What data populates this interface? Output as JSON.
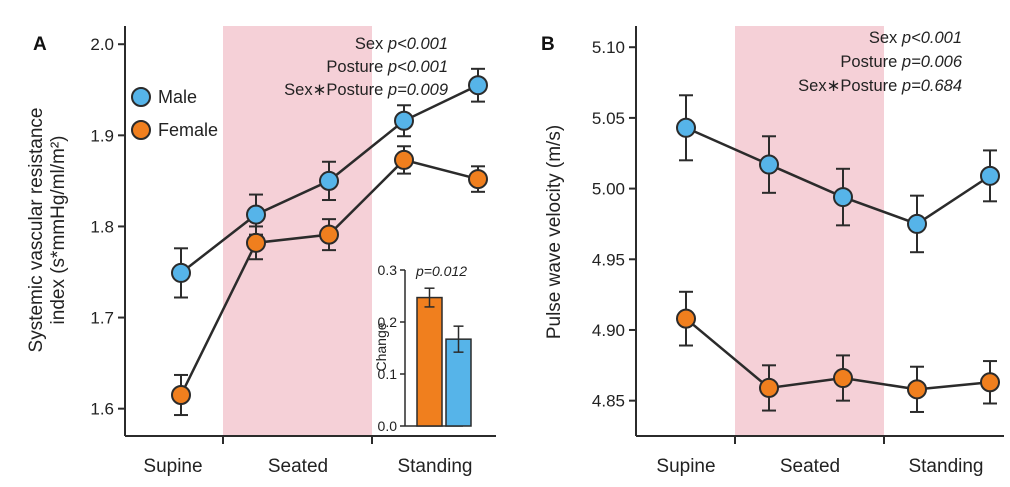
{
  "colors": {
    "male": "#56b4e9",
    "female": "#f07f1e",
    "shade": "#f5d0d7",
    "line": "#2b2b2b"
  },
  "legend": {
    "male": "Male",
    "female": "Female"
  },
  "chart_data": [
    {
      "panel_letter": "A",
      "type": "line",
      "ylabel_line1": "Systemic vascular resistance",
      "ylabel_line2": "index (s*mmHg/ml/m²)",
      "categories": [
        "Supine",
        "Seated",
        "Standing"
      ],
      "ylim": [
        1.57,
        2.02
      ],
      "yticks": [
        1.6,
        1.7,
        1.8,
        1.9,
        2.0
      ],
      "ytick_labels": [
        "1.6",
        "1.7",
        "1.8",
        "1.9",
        "2.0"
      ],
      "shaded_region": "Seated",
      "stats": [
        {
          "label": "Sex",
          "p": "p<0.001"
        },
        {
          "label": "Posture",
          "p": "p<0.001"
        },
        {
          "label": "Sex∗Posture",
          "p": "p=0.009"
        }
      ],
      "series": [
        {
          "name": "Male",
          "x": [
            1,
            2,
            3,
            4,
            5
          ],
          "values": [
            1.749,
            1.813,
            1.85,
            1.916,
            1.955
          ],
          "err": [
            0.027,
            0.022,
            0.021,
            0.017,
            0.018
          ]
        },
        {
          "name": "Female",
          "x": [
            1,
            2,
            3,
            4,
            5
          ],
          "values": [
            1.615,
            1.782,
            1.791,
            1.873,
            1.852
          ],
          "err": [
            0.022,
            0.018,
            0.017,
            0.015,
            0.014
          ]
        }
      ],
      "inset": {
        "type": "bar",
        "ylabel": "Change",
        "ylim": [
          0,
          0.3
        ],
        "yticks": [
          0.0,
          0.1,
          0.2,
          0.3
        ],
        "ytick_labels": [
          "0.0",
          "0.1",
          "0.2",
          "0.3"
        ],
        "p": "p=0.012",
        "bars": [
          {
            "name": "Female",
            "value": 0.247,
            "err": 0.018
          },
          {
            "name": "Male",
            "value": 0.167,
            "err": 0.025
          }
        ]
      }
    },
    {
      "panel_letter": "B",
      "type": "line",
      "ylabel_line1": "Pulse wave velocity (m/s)",
      "categories": [
        "Supine",
        "Seated",
        "Standing"
      ],
      "ylim": [
        4.825,
        5.115
      ],
      "yticks": [
        4.85,
        4.9,
        4.95,
        5.0,
        5.05,
        5.1
      ],
      "ytick_labels": [
        "4.85",
        "4.90",
        "4.95",
        "5.00",
        "5.05",
        "5.10"
      ],
      "shaded_region": "Seated",
      "stats": [
        {
          "label": "Sex",
          "p": "p<0.001"
        },
        {
          "label": "Posture",
          "p": "p=0.006"
        },
        {
          "label": "Sex∗Posture",
          "p": "p=0.684"
        }
      ],
      "series": [
        {
          "name": "Male",
          "x": [
            1,
            2,
            3,
            4,
            5
          ],
          "values": [
            5.043,
            5.017,
            4.994,
            4.975,
            5.009
          ],
          "err": [
            0.023,
            0.02,
            0.02,
            0.02,
            0.018
          ]
        },
        {
          "name": "Female",
          "x": [
            1,
            2,
            3,
            4,
            5
          ],
          "values": [
            4.908,
            4.859,
            4.866,
            4.858,
            4.863
          ],
          "err": [
            0.019,
            0.016,
            0.016,
            0.016,
            0.015
          ]
        }
      ]
    }
  ]
}
